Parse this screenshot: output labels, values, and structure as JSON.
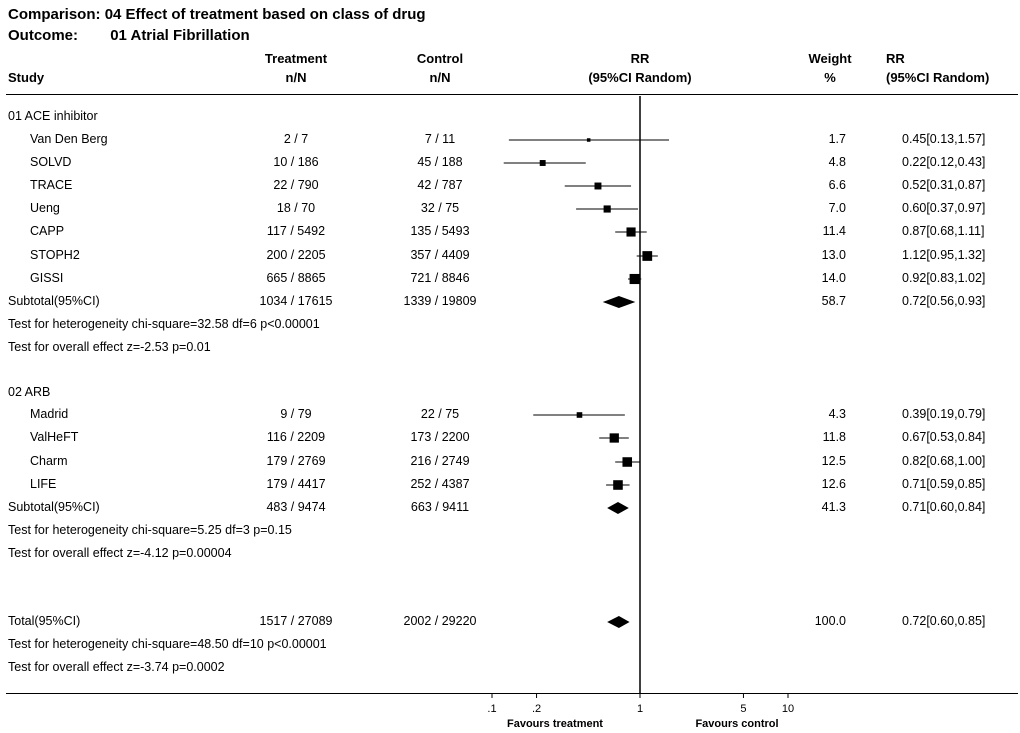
{
  "header": {
    "comparison_label": "Comparison:",
    "comparison_text": "04 Effect of treatment based on class of drug",
    "outcome_label": "Outcome:",
    "outcome_text": "01 Atrial Fibrillation"
  },
  "columns": {
    "study": "Study",
    "treatment_top": "Treatment",
    "treatment_sub": "n/N",
    "control_top": "Control",
    "control_sub": "n/N",
    "rr_top": "RR",
    "rr_sub": "(95%CI Random)",
    "weight_top": "Weight",
    "weight_sub": "%",
    "rrci_top": "RR",
    "rrci_sub": "(95%CI Random)"
  },
  "chart_data": {
    "type": "forest",
    "x_scale": "log",
    "xlim": [
      0.1,
      10
    ],
    "x_ticks": [
      ".1",
      ".2",
      "1",
      "5",
      "10"
    ],
    "favours_left": "Favours treatment",
    "favours_right": "Favours control",
    "groups": [
      {
        "label": "01 ACE inhibitor",
        "studies": [
          {
            "name": "Van Den Berg",
            "treatment": "2 / 7",
            "control": "7 / 11",
            "rr": 0.45,
            "lo": 0.13,
            "hi": 1.57,
            "weight": "1.7",
            "rr_text": "0.45[0.13,1.57]"
          },
          {
            "name": "SOLVD",
            "treatment": "10 / 186",
            "control": "45 / 188",
            "rr": 0.22,
            "lo": 0.12,
            "hi": 0.43,
            "weight": "4.8",
            "rr_text": "0.22[0.12,0.43]"
          },
          {
            "name": "TRACE",
            "treatment": "22 / 790",
            "control": "42 / 787",
            "rr": 0.52,
            "lo": 0.31,
            "hi": 0.87,
            "weight": "6.6",
            "rr_text": "0.52[0.31,0.87]"
          },
          {
            "name": "Ueng",
            "treatment": "18 / 70",
            "control": "32 / 75",
            "rr": 0.6,
            "lo": 0.37,
            "hi": 0.97,
            "weight": "7.0",
            "rr_text": "0.60[0.37,0.97]"
          },
          {
            "name": "CAPP",
            "treatment": "117 / 5492",
            "control": "135 / 5493",
            "rr": 0.87,
            "lo": 0.68,
            "hi": 1.11,
            "weight": "11.4",
            "rr_text": "0.87[0.68,1.11]"
          },
          {
            "name": "STOPH2",
            "treatment": "200 / 2205",
            "control": "357 / 4409",
            "rr": 1.12,
            "lo": 0.95,
            "hi": 1.32,
            "weight": "13.0",
            "rr_text": "1.12[0.95,1.32]"
          },
          {
            "name": "GISSI",
            "treatment": "665 / 8865",
            "control": "721 / 8846",
            "rr": 0.92,
            "lo": 0.83,
            "hi": 1.02,
            "weight": "14.0",
            "rr_text": "0.92[0.83,1.02]"
          }
        ],
        "subtotal": {
          "label": "Subtotal(95%CI)",
          "treatment": "1034 / 17615",
          "control": "1339 / 19809",
          "rr": 0.72,
          "lo": 0.56,
          "hi": 0.93,
          "weight": "58.7",
          "rr_text": "0.72[0.56,0.93]"
        },
        "heterogeneity": "Test for heterogeneity chi-square=32.58  df=6  p<0.00001",
        "overall": "Test for overall effect  z=-2.53  p=0.01"
      },
      {
        "label": "02 ARB",
        "studies": [
          {
            "name": "Madrid",
            "treatment": "9 / 79",
            "control": "22 / 75",
            "rr": 0.39,
            "lo": 0.19,
            "hi": 0.79,
            "weight": "4.3",
            "rr_text": "0.39[0.19,0.79]"
          },
          {
            "name": "ValHeFT",
            "treatment": "116 / 2209",
            "control": "173 / 2200",
            "rr": 0.67,
            "lo": 0.53,
            "hi": 0.84,
            "weight": "11.8",
            "rr_text": "0.67[0.53,0.84]"
          },
          {
            "name": "Charm",
            "treatment": "179 / 2769",
            "control": "216 / 2749",
            "rr": 0.82,
            "lo": 0.68,
            "hi": 1.0,
            "weight": "12.5",
            "rr_text": "0.82[0.68,1.00]"
          },
          {
            "name": "LIFE",
            "treatment": "179 / 4417",
            "control": "252 / 4387",
            "rr": 0.71,
            "lo": 0.59,
            "hi": 0.85,
            "weight": "12.6",
            "rr_text": "0.71[0.59,0.85]"
          }
        ],
        "subtotal": {
          "label": "Subtotal(95%CI)",
          "treatment": "483 / 9474",
          "control": "663 / 9411",
          "rr": 0.71,
          "lo": 0.6,
          "hi": 0.84,
          "weight": "41.3",
          "rr_text": "0.71[0.60,0.84]"
        },
        "heterogeneity": "Test for heterogeneity chi-square=5.25  df=3  p=0.15",
        "overall": "Test for overall effect  z=-4.12  p=0.00004"
      }
    ],
    "total": {
      "label": "Total(95%CI)",
      "treatment": "1517 / 27089",
      "control": "2002 / 29220",
      "rr": 0.72,
      "lo": 0.6,
      "hi": 0.85,
      "weight": "100.0",
      "rr_text": "0.72[0.60,0.85]",
      "heterogeneity": "Test for heterogeneity chi-square=48.50  df=10  p<0.00001",
      "overall": "Test for overall effect  z=-3.74  p=0.0002"
    }
  }
}
